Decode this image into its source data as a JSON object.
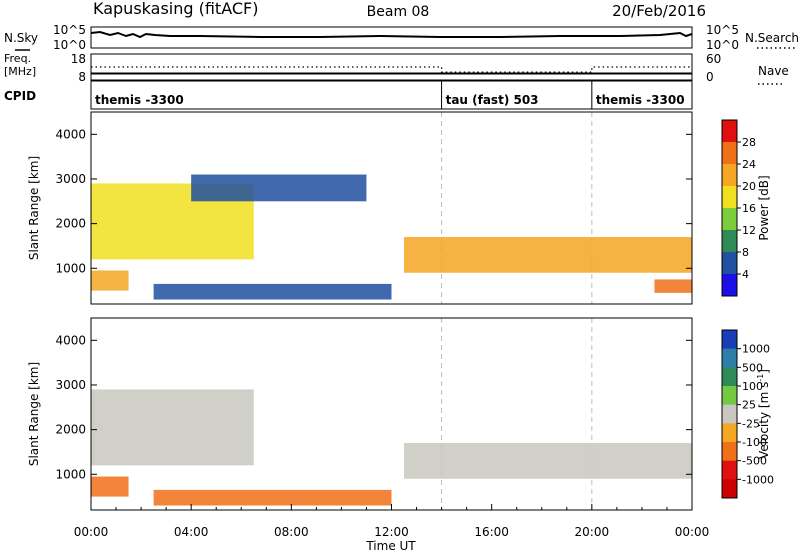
{
  "header": {
    "station": "Kapuskasing (fitACF)",
    "beam": "Beam 08",
    "date": "20/Feb/2016"
  },
  "chart_data": [
    {
      "type": "line",
      "panel": "noise",
      "left_label": "N.Sky",
      "left_ticks": [
        "10^5",
        "10^0"
      ],
      "right_label": "N.Search",
      "right_ticks": [
        "10^5",
        "10^0"
      ],
      "series": [
        {
          "name": "N.Sky",
          "style": "solid",
          "x_hours": [
            0,
            1,
            2,
            4,
            6,
            8,
            10,
            12,
            14,
            16,
            18,
            20,
            22,
            24
          ],
          "values": [
            1000,
            1000,
            800,
            700,
            600,
            700,
            750,
            800,
            700,
            650,
            700,
            800,
            900,
            1000
          ]
        },
        {
          "name": "N.Search",
          "style": "dotted",
          "x_hours": [],
          "values": []
        }
      ]
    },
    {
      "type": "line",
      "panel": "frequency",
      "left_label_lines": [
        "Freq.",
        "[MHz]"
      ],
      "left_ticks": [
        "18",
        "8"
      ],
      "right_label": "Nave",
      "right_ticks": [
        "60",
        "0"
      ],
      "ylim_left": [
        8,
        18
      ],
      "ylim_right": [
        0,
        60
      ],
      "series": [
        {
          "name": "Freq.",
          "style": "solid",
          "x_hours": [
            0,
            24
          ],
          "values": [
            10.5,
            10.5
          ]
        },
        {
          "name": "Nave",
          "style": "dotted",
          "x_hours": [
            0,
            14,
            14,
            20,
            20,
            24
          ],
          "values": [
            30,
            30,
            18,
            18,
            30,
            30
          ]
        }
      ]
    },
    {
      "type": "table",
      "panel": "cpid",
      "label": "CPID",
      "segments": [
        {
          "name": "themis -3300",
          "start": 0,
          "end": 14
        },
        {
          "name": "tau (fast) 503",
          "start": 14,
          "end": 20
        },
        {
          "name": "themis -3300",
          "start": 20,
          "end": 24
        }
      ]
    },
    {
      "type": "heatmap",
      "panel": "power",
      "ylabel": "Slant Range [km]",
      "yticks": [
        1000,
        2000,
        3000,
        4000
      ],
      "ylim": [
        200,
        4500
      ],
      "colorbar_label": "Power [dB]",
      "colorbar_ticks": [
        4,
        8,
        12,
        16,
        20,
        24,
        28
      ],
      "colorbar_colors": [
        "#1a10e6",
        "#2050a0",
        "#2e8b57",
        "#7ccd3c",
        "#f0e020",
        "#f5a623",
        "#f07018",
        "#e01010"
      ],
      "echo_regions": [
        {
          "x_hours": [
            0,
            6.5
          ],
          "range_km": [
            1200,
            2900
          ],
          "power_db": 18
        },
        {
          "x_hours": [
            0,
            1.5
          ],
          "range_km": [
            500,
            950
          ],
          "power_db": 22
        },
        {
          "x_hours": [
            2.5,
            12
          ],
          "range_km": [
            300,
            650
          ],
          "power_db": 6
        },
        {
          "x_hours": [
            4,
            11
          ],
          "range_km": [
            2500,
            3100
          ],
          "power_db": 6
        },
        {
          "x_hours": [
            12.5,
            24
          ],
          "range_km": [
            900,
            1700
          ],
          "power_db": 22
        },
        {
          "x_hours": [
            22.5,
            24
          ],
          "range_km": [
            450,
            750
          ],
          "power_db": 24
        }
      ]
    },
    {
      "type": "heatmap",
      "panel": "velocity",
      "ylabel": "Slant Range [km]",
      "yticks": [
        1000,
        2000,
        3000,
        4000
      ],
      "ylim": [
        200,
        4500
      ],
      "xlabel": "Time UT",
      "xticks": [
        "00:00",
        "04:00",
        "08:00",
        "12:00",
        "16:00",
        "20:00",
        "00:00"
      ],
      "colorbar_label": "Velocity [m s",
      "colorbar_label_sup": "-1",
      "colorbar_label_end": "]",
      "colorbar_ticks": [
        1000,
        500,
        100,
        25,
        -25,
        -100,
        -500,
        -1000
      ],
      "colorbar_colors": [
        "#1a3db5",
        "#2c7fa8",
        "#2e8b57",
        "#74c943",
        "#c8c8c0",
        "#f5a623",
        "#f07018",
        "#e01010",
        "#cc0000"
      ],
      "echo_regions": [
        {
          "x_hours": [
            0,
            6.5
          ],
          "range_km": [
            1200,
            2900
          ],
          "velocity": 0
        },
        {
          "x_hours": [
            0,
            1.5
          ],
          "range_km": [
            500,
            950
          ],
          "velocity": -300
        },
        {
          "x_hours": [
            2.5,
            12
          ],
          "range_km": [
            300,
            650
          ],
          "velocity": -120
        },
        {
          "x_hours": [
            12.5,
            24
          ],
          "range_km": [
            900,
            1700
          ],
          "velocity": 0
        }
      ]
    }
  ]
}
